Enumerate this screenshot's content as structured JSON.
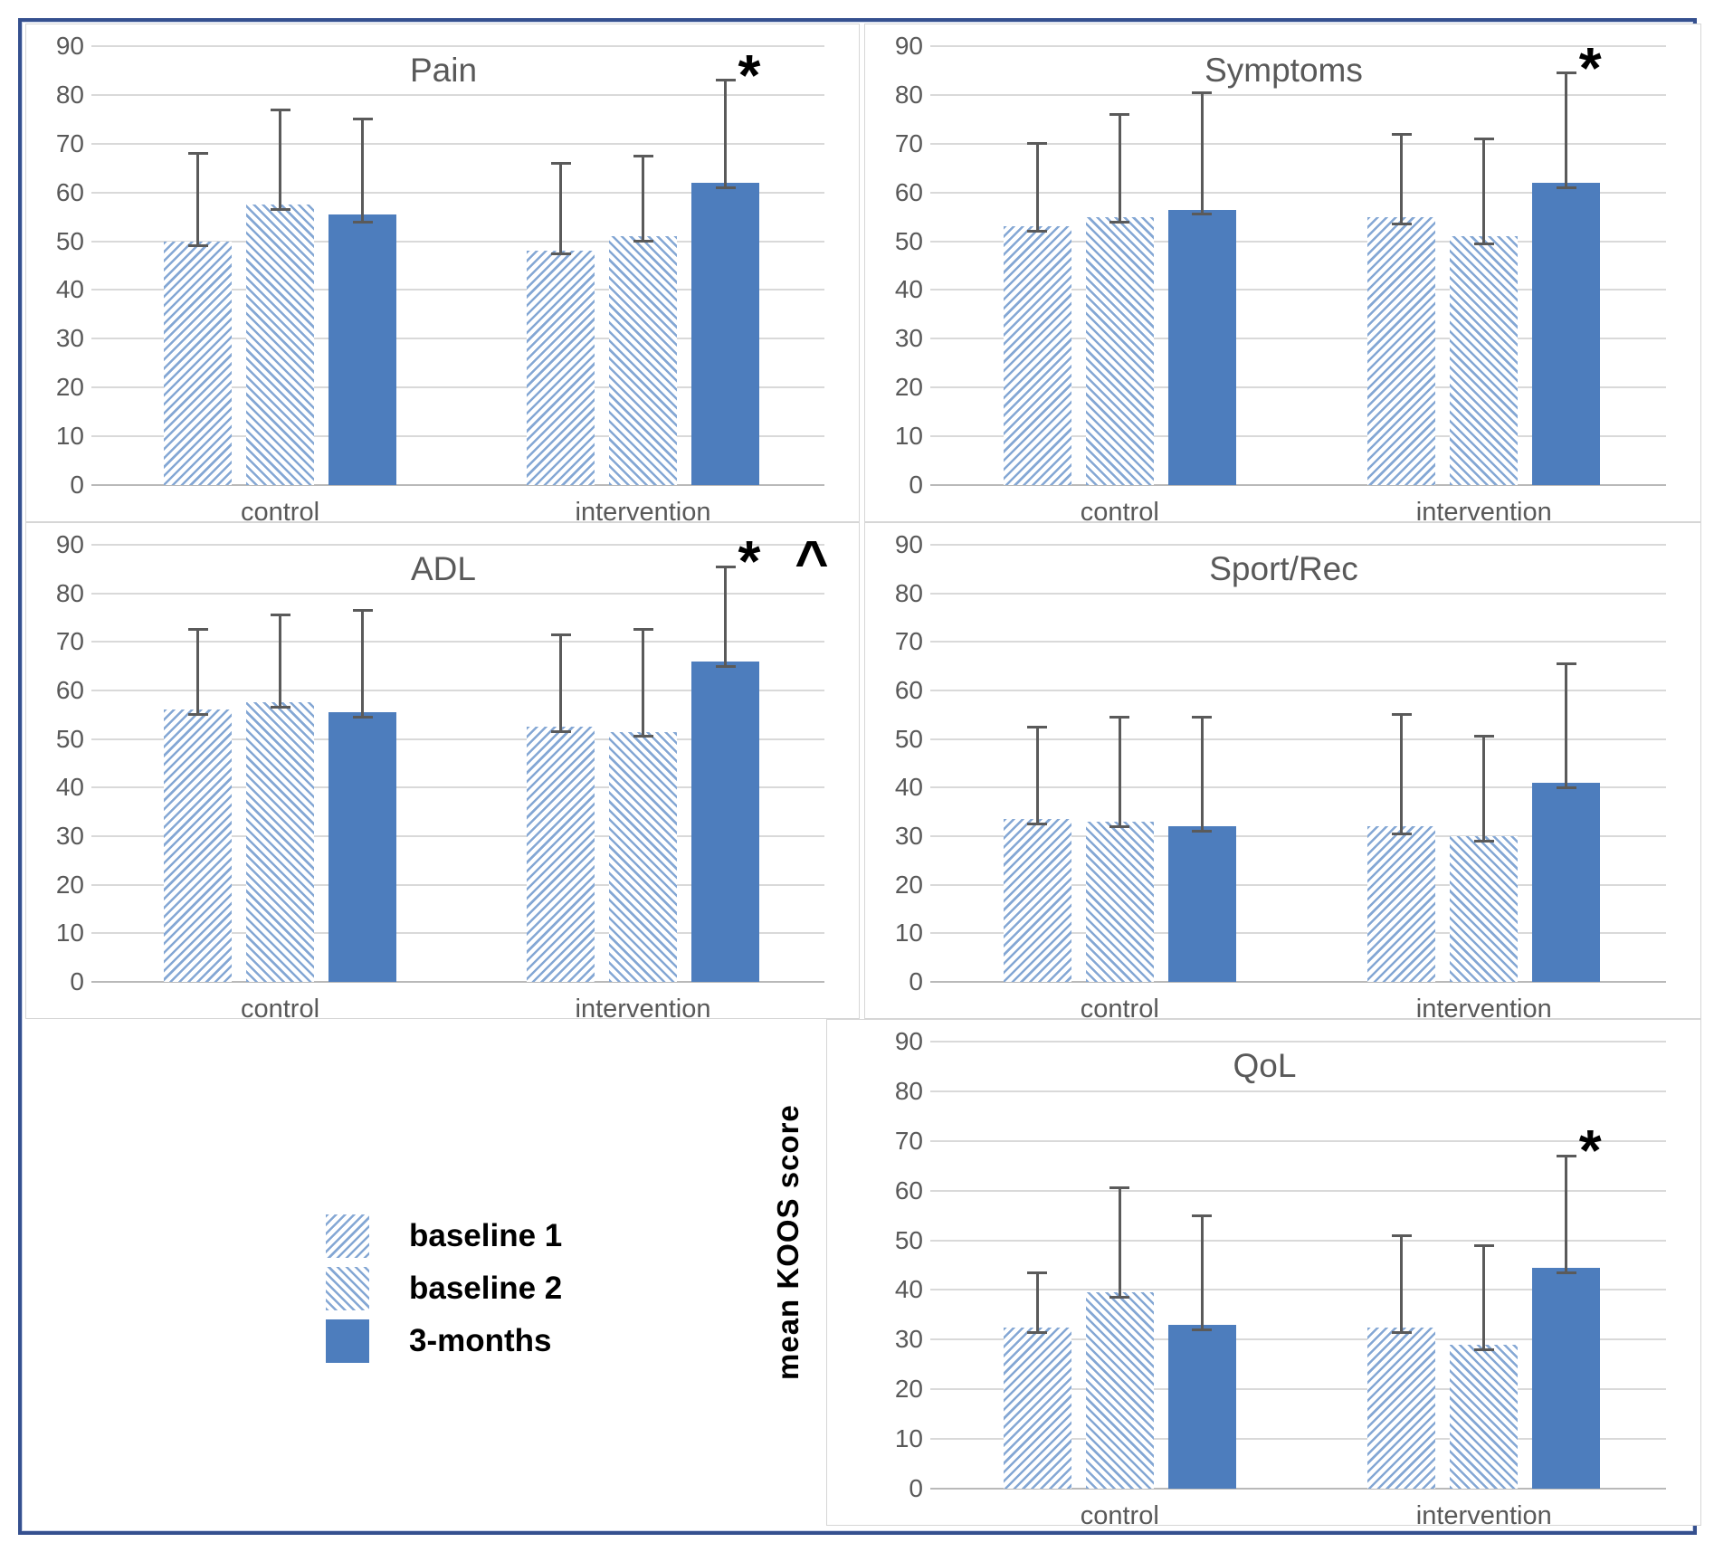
{
  "figure": {
    "colors": {
      "solid_bar": "#4d7dbd",
      "hatch_line": "#84a7d4",
      "frame_border": "#35508f",
      "panel_border": "#d6d6d6",
      "gridline": "#d9d9d9",
      "axis_text": "#595959",
      "error_bar": "#5a5a5a",
      "annotation": "#000000"
    }
  },
  "y_axis_title": "mean KOOS score",
  "legend": {
    "items": [
      {
        "label": "baseline 1",
        "pattern": "diag-forward"
      },
      {
        "label": "baseline 2",
        "pattern": "diag-back"
      },
      {
        "label": "3-months",
        "pattern": "solid"
      }
    ]
  },
  "chart_data": [
    {
      "type": "bar",
      "title": "Pain",
      "categories": [
        "control",
        "intervention"
      ],
      "ylim": [
        0,
        90
      ],
      "ytick_step": 10,
      "yticks": [
        90,
        80,
        70,
        60,
        50,
        40,
        30,
        20,
        10,
        0
      ],
      "grid": true,
      "legend_position": "bottom-left-of-figure",
      "series": [
        {
          "name": "baseline 1",
          "pattern": "diag-forward",
          "values": [
            50,
            48
          ],
          "err_low": [
            49,
            47.5
          ],
          "err_high": [
            68,
            66
          ]
        },
        {
          "name": "baseline 2",
          "pattern": "diag-back",
          "values": [
            57.5,
            51
          ],
          "err_low": [
            56.5,
            50
          ],
          "err_high": [
            77,
            67.5
          ]
        },
        {
          "name": "3-months",
          "pattern": "solid",
          "values": [
            55.5,
            62
          ],
          "err_low": [
            54,
            61
          ],
          "err_high": [
            75,
            83
          ]
        }
      ],
      "annotation": {
        "text": "*",
        "category": "intervention",
        "series": "3-months"
      }
    },
    {
      "type": "bar",
      "title": "Symptoms",
      "categories": [
        "control",
        "intervention"
      ],
      "ylim": [
        0,
        90
      ],
      "ytick_step": 10,
      "yticks": [
        90,
        80,
        70,
        60,
        50,
        40,
        30,
        20,
        10,
        0
      ],
      "grid": true,
      "series": [
        {
          "name": "baseline 1",
          "pattern": "diag-forward",
          "values": [
            53,
            55
          ],
          "err_low": [
            52,
            53.5
          ],
          "err_high": [
            70,
            72
          ]
        },
        {
          "name": "baseline 2",
          "pattern": "diag-back",
          "values": [
            55,
            51
          ],
          "err_low": [
            54,
            49.5
          ],
          "err_high": [
            76,
            71
          ]
        },
        {
          "name": "3-months",
          "pattern": "solid",
          "values": [
            56.5,
            62
          ],
          "err_low": [
            55.5,
            61
          ],
          "err_high": [
            80.5,
            84.5
          ]
        }
      ],
      "annotation": {
        "text": "*",
        "category": "intervention",
        "series": "3-months"
      }
    },
    {
      "type": "bar",
      "title": "ADL",
      "categories": [
        "control",
        "intervention"
      ],
      "ylim": [
        0,
        90
      ],
      "ytick_step": 10,
      "yticks": [
        90,
        80,
        70,
        60,
        50,
        40,
        30,
        20,
        10,
        0
      ],
      "grid": true,
      "series": [
        {
          "name": "baseline 1",
          "pattern": "diag-forward",
          "values": [
            56,
            52.5
          ],
          "err_low": [
            55,
            51.5
          ],
          "err_high": [
            72.5,
            71.5
          ]
        },
        {
          "name": "baseline 2",
          "pattern": "diag-back",
          "values": [
            57.5,
            51.5
          ],
          "err_low": [
            56.5,
            50.5
          ],
          "err_high": [
            75.5,
            72.5
          ]
        },
        {
          "name": "3-months",
          "pattern": "solid",
          "values": [
            55.5,
            66
          ],
          "err_low": [
            54.5,
            65
          ],
          "err_high": [
            76.5,
            85.5
          ]
        }
      ],
      "annotation": {
        "text": "* ^",
        "category": "intervention",
        "series": "3-months"
      }
    },
    {
      "type": "bar",
      "title": "Sport/Rec",
      "categories": [
        "control",
        "intervention"
      ],
      "ylim": [
        0,
        90
      ],
      "ytick_step": 10,
      "yticks": [
        90,
        80,
        70,
        60,
        50,
        40,
        30,
        20,
        10,
        0
      ],
      "grid": true,
      "series": [
        {
          "name": "baseline 1",
          "pattern": "diag-forward",
          "values": [
            33.5,
            32
          ],
          "err_low": [
            32.5,
            30.5
          ],
          "err_high": [
            52.5,
            55
          ]
        },
        {
          "name": "baseline 2",
          "pattern": "diag-back",
          "values": [
            33,
            30
          ],
          "err_low": [
            32,
            29
          ],
          "err_high": [
            54.5,
            50.5
          ]
        },
        {
          "name": "3-months",
          "pattern": "solid",
          "values": [
            32,
            41
          ],
          "err_low": [
            31,
            40
          ],
          "err_high": [
            54.5,
            65.5
          ]
        }
      ],
      "annotation": null
    },
    {
      "type": "bar",
      "title": "QoL",
      "categories": [
        "control",
        "intervention"
      ],
      "ylabel": "mean KOOS score",
      "ylim": [
        0,
        90
      ],
      "ytick_step": 10,
      "yticks": [
        90,
        80,
        70,
        60,
        50,
        40,
        30,
        20,
        10,
        0
      ],
      "grid": true,
      "series": [
        {
          "name": "baseline 1",
          "pattern": "diag-forward",
          "values": [
            32.5,
            32.5
          ],
          "err_low": [
            31.5,
            31.5
          ],
          "err_high": [
            43.5,
            51
          ]
        },
        {
          "name": "baseline 2",
          "pattern": "diag-back",
          "values": [
            39.5,
            29
          ],
          "err_low": [
            38.5,
            28
          ],
          "err_high": [
            60.5,
            49
          ]
        },
        {
          "name": "3-months",
          "pattern": "solid",
          "values": [
            33,
            44.5
          ],
          "err_low": [
            32,
            43.5
          ],
          "err_high": [
            55,
            67
          ]
        }
      ],
      "annotation": {
        "text": "*",
        "category": "intervention",
        "series": "3-months"
      }
    }
  ]
}
